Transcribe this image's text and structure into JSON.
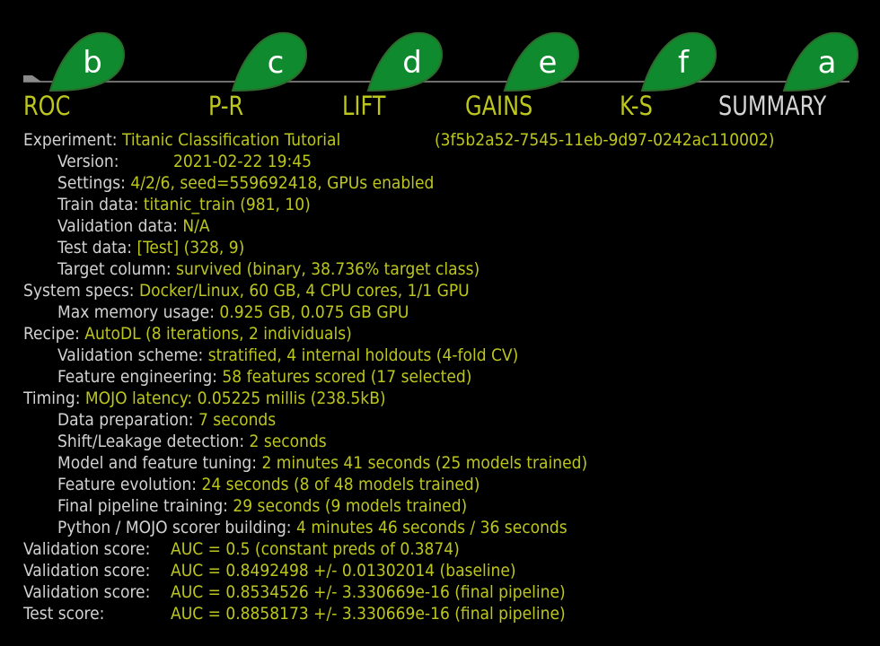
{
  "tabs": [
    {
      "label": "ROC",
      "marker": "b"
    },
    {
      "label": "P-R",
      "marker": "c"
    },
    {
      "label": "LIFT",
      "marker": "d"
    },
    {
      "label": "GAINS",
      "marker": "e"
    },
    {
      "label": "K-S",
      "marker": "f"
    },
    {
      "label": "SUMMARY",
      "marker": "a"
    }
  ],
  "active_tab": "SUMMARY",
  "colors": {
    "background": "#000000",
    "accent_text": "#bcc61d",
    "label_text": "#d2d2d2",
    "marker_green": "#0f8a2e",
    "marker_border": "#2d6b2d",
    "tab_line": "#6e6e6e"
  },
  "experiment": {
    "label": "Experiment:",
    "name": "Titanic Classification Tutorial",
    "id": "(3f5b2a52-7545-11eb-9d97-0242ac110002)",
    "version": {
      "label": "Version:",
      "value": "2021-02-22 19:45"
    },
    "settings": {
      "label": "Settings:",
      "value": "4/2/6, seed=559692418, GPUs enabled"
    },
    "train_data": {
      "label": "Train data:",
      "value": "titanic_train (981, 10)"
    },
    "validation_data": {
      "label": "Validation data:",
      "value": "N/A"
    },
    "test_data": {
      "label": "Test data:",
      "value": "[Test] (328, 9)"
    },
    "target_column": {
      "label": "Target column:",
      "value": "survived (binary, 38.736% target class)"
    }
  },
  "system": {
    "label": "System specs:",
    "value": "Docker/Linux, 60 GB, 4 CPU cores, 1/1 GPU",
    "max_memory": {
      "label": "Max memory usage:",
      "value": "0.925 GB, 0.075 GB GPU"
    }
  },
  "recipe": {
    "label": "Recipe:",
    "value": "AutoDL (8 iterations, 2 individuals)",
    "validation_scheme": {
      "label": "Validation scheme:",
      "value": "stratified, 4 internal holdouts (4-fold CV)"
    },
    "feature_engineering": {
      "label": "Feature engineering:",
      "value": "58 features scored (17 selected)"
    }
  },
  "timing": {
    "label": "Timing:",
    "value": "MOJO latency: 0.05225 millis (238.5kB)",
    "data_preparation": {
      "label": "Data preparation:",
      "value": "7 seconds"
    },
    "shift_leakage": {
      "label": "Shift/Leakage detection:",
      "value": "2 seconds"
    },
    "model_tuning": {
      "label": "Model and feature tuning:",
      "value": "2 minutes 41 seconds (25 models trained)"
    },
    "feature_evolution": {
      "label": "Feature evolution:",
      "value": "24 seconds (8 of 48 models trained)"
    },
    "final_pipeline": {
      "label": "Final pipeline training:",
      "value": "29 seconds (9 models trained)"
    },
    "scorer_building": {
      "label": "Python / MOJO scorer building:",
      "value": "4 minutes 46 seconds / 36 seconds"
    }
  },
  "scores": [
    {
      "label": "Validation score:",
      "value": "AUC = 0.5 (constant preds of 0.3874)"
    },
    {
      "label": "Validation score:",
      "value": "AUC = 0.8492498 +/- 0.01302014 (baseline)"
    },
    {
      "label": "Validation score:",
      "value": "AUC = 0.8534526 +/- 3.330669e-16 (final pipeline)"
    },
    {
      "label": "Test score:",
      "value": "AUC = 0.8858173 +/- 3.330669e-16 (final pipeline)"
    }
  ]
}
